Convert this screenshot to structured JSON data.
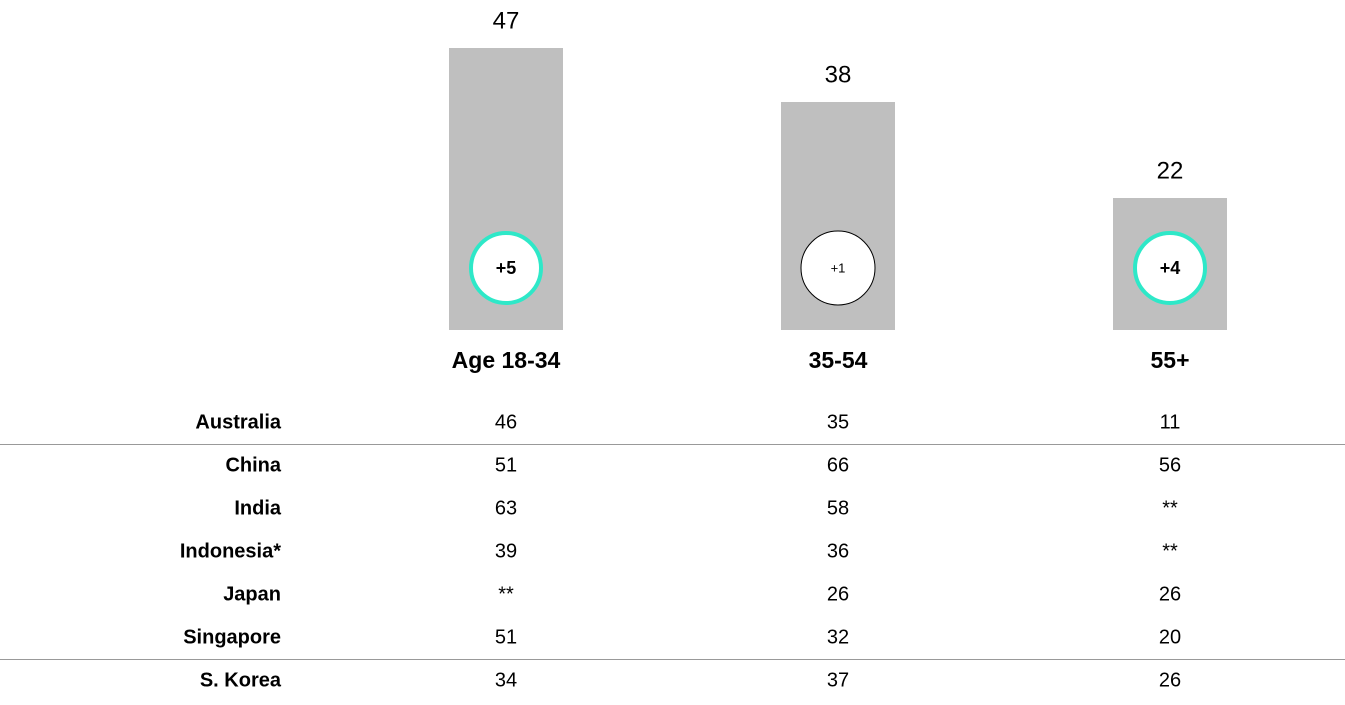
{
  "chart_data": {
    "type": "bar",
    "categories": [
      "Age 18-34",
      "35-54",
      "55+"
    ],
    "values": [
      47,
      38,
      22
    ],
    "color": "#bfbfbf",
    "changes": [
      "+5",
      "+1",
      "+4"
    ],
    "change_highlight": [
      true,
      false,
      true
    ],
    "highlight_color": "#2ee8c8"
  },
  "table": {
    "rows": [
      [
        "Australia",
        46,
        35,
        11
      ],
      [
        "China",
        51,
        66,
        56
      ],
      [
        "India",
        63,
        58,
        "**"
      ],
      [
        "Indonesia*",
        39,
        36,
        "**"
      ],
      [
        "Japan",
        "**",
        26,
        26
      ],
      [
        "Singapore",
        51,
        32,
        20
      ],
      [
        "S. Korea",
        34,
        37,
        26
      ]
    ]
  }
}
